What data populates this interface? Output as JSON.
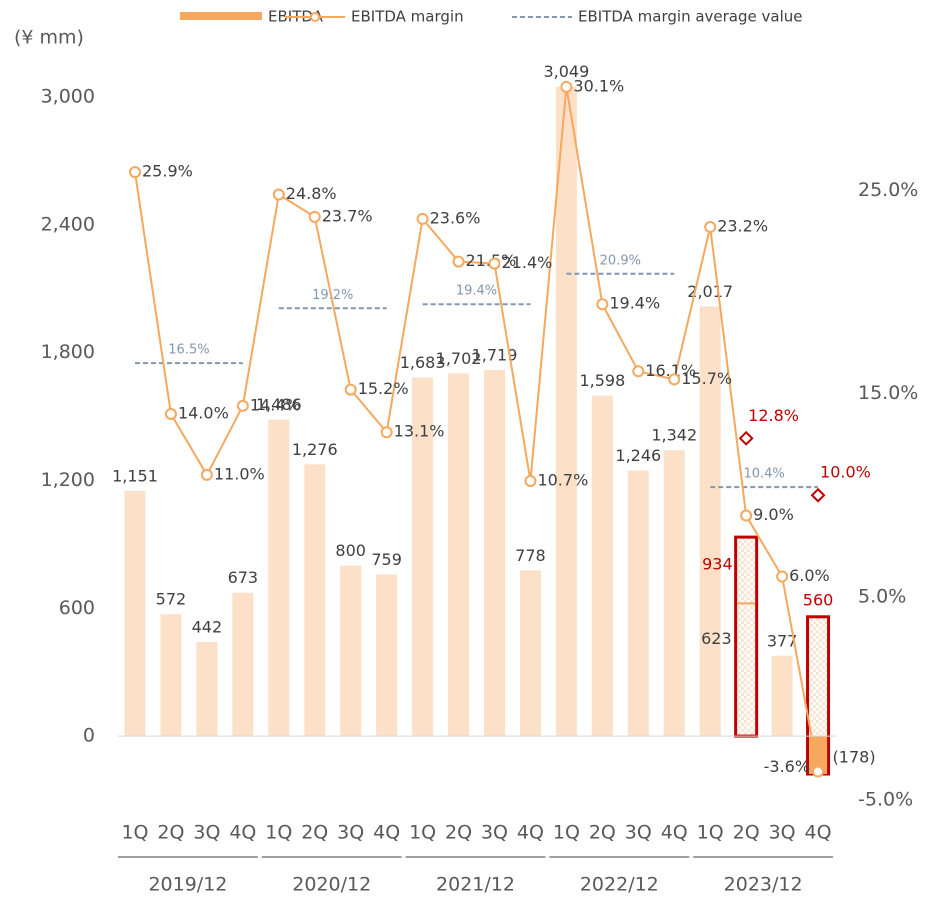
{
  "chart_data": {
    "type": "bar_line",
    "y_label": "(¥ mm)",
    "categories": [
      "1Q",
      "2Q",
      "3Q",
      "4Q",
      "1Q",
      "2Q",
      "3Q",
      "4Q",
      "1Q",
      "2Q",
      "3Q",
      "4Q",
      "1Q",
      "2Q",
      "3Q",
      "4Q",
      "1Q",
      "2Q",
      "3Q",
      "4Q"
    ],
    "groups": [
      "2019/12",
      "2020/12",
      "2021/12",
      "2022/12",
      "2023/12"
    ],
    "ylim": [
      -300,
      3000
    ],
    "yticks": [
      0,
      600,
      {
        "value": 1200,
        "label": "1,200"
      },
      {
        "value": 1800,
        "label": "1,800"
      },
      {
        "value": 2400,
        "label": "2,400"
      },
      {
        "value": 3000,
        "label": "3,000"
      }
    ],
    "y2lim": [
      -5,
      29.6
    ],
    "y2ticks": [
      {
        "value": -5,
        "label": "-5.0%"
      },
      {
        "value": 5,
        "label": "5.0%"
      },
      {
        "value": 15,
        "label": "15.0%"
      },
      {
        "value": 25,
        "label": "25.0%"
      }
    ],
    "series": [
      {
        "name": "EBITDA",
        "color": "#fde0c8",
        "values": [
          1151,
          572,
          442,
          673,
          1486,
          1276,
          800,
          759,
          1683,
          1702,
          1719,
          778,
          3049,
          1598,
          1246,
          1342,
          2017,
          623,
          377,
          -178
        ],
        "value_labels": [
          "1,151",
          "572",
          "442",
          "673",
          "1,486",
          "1,276",
          "800",
          "759",
          "1,683",
          "1,702",
          "1,719",
          "778",
          "3,049",
          "1,598",
          "1,246",
          "1,342",
          "2,017",
          "623",
          "377",
          "(178)"
        ]
      },
      {
        "name": "EBITDA margin",
        "color": "#f5a85e",
        "axis": "y2",
        "values": [
          25.9,
          14.0,
          11.0,
          14.4,
          24.8,
          23.7,
          15.2,
          13.1,
          23.6,
          21.5,
          21.4,
          10.7,
          30.1,
          19.4,
          16.1,
          15.7,
          23.2,
          9.0,
          6.0,
          -3.6
        ],
        "value_labels": [
          "25.9%",
          "14.0%",
          "11.0%",
          "14.4%",
          "24.8%",
          "23.7%",
          "15.2%",
          "13.1%",
          "23.6%",
          "21.5%",
          "21.4%",
          "10.7%",
          "30.1%",
          "19.4%",
          "16.1%",
          "15.7%",
          "23.2%",
          "9.0%",
          "6.0%",
          "-3.6%"
        ]
      }
    ],
    "group_average": {
      "name": "EBITDA margin average value",
      "color": "#8497b0",
      "axis": "y2",
      "values": [
        16.5,
        19.2,
        19.4,
        20.9,
        10.4
      ],
      "value_labels": [
        "16.5%",
        "19.2%",
        "19.4%",
        "20.9%",
        "10.4%"
      ]
    },
    "forecast": {
      "color": "#c00000",
      "values": [
        null,
        null,
        null,
        null,
        null,
        null,
        null,
        null,
        null,
        null,
        null,
        null,
        null,
        null,
        null,
        null,
        null,
        934,
        null,
        560
      ],
      "margin_values": [
        null,
        null,
        null,
        null,
        null,
        null,
        null,
        null,
        null,
        null,
        null,
        null,
        null,
        null,
        null,
        null,
        null,
        12.8,
        null,
        10.0
      ],
      "margin_labels": [
        null,
        null,
        null,
        null,
        null,
        null,
        null,
        null,
        null,
        null,
        null,
        null,
        null,
        null,
        null,
        null,
        null,
        "12.8%",
        null,
        "10.0%"
      ]
    }
  }
}
